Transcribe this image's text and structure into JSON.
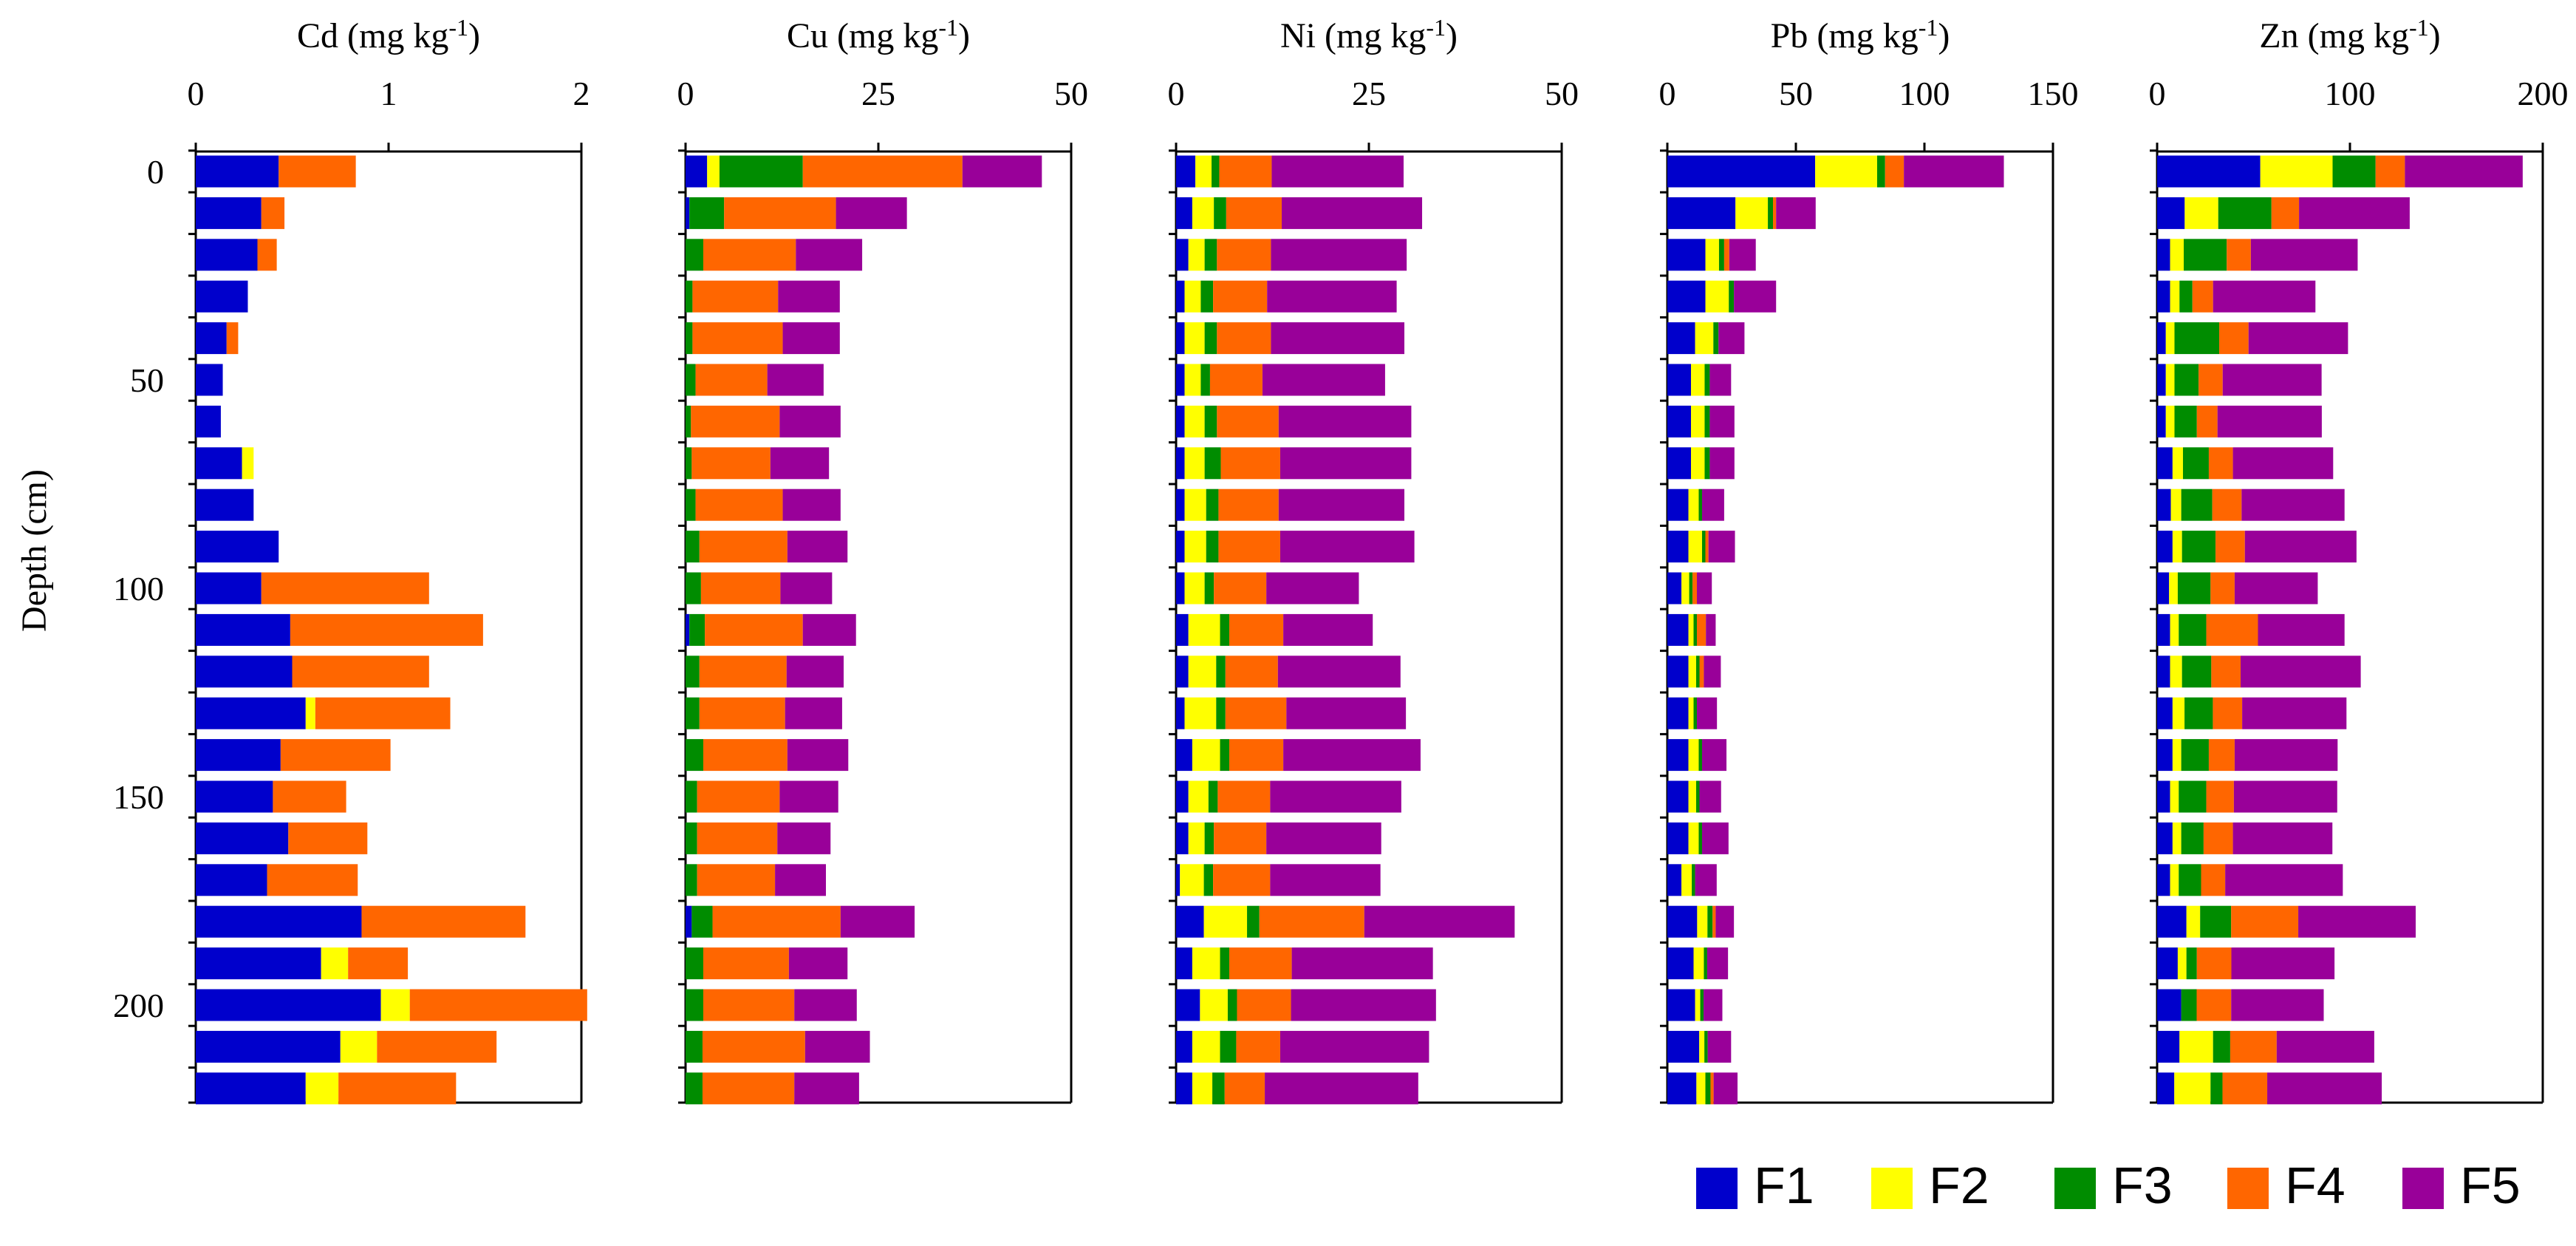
{
  "chart_data": {
    "type": "bar",
    "orientation": "horizontal",
    "stacked": true,
    "y_axis": {
      "label": "Depth (cm)",
      "tick_labels": [
        "0",
        "50",
        "100",
        "150",
        "200"
      ],
      "tick_values": [
        0,
        50,
        100,
        150,
        200
      ]
    },
    "depths": [
      0,
      10,
      20,
      30,
      40,
      50,
      60,
      70,
      80,
      90,
      100,
      110,
      120,
      130,
      140,
      150,
      160,
      170,
      180,
      190,
      200,
      210,
      220
    ],
    "legend": {
      "position": "bottom-right",
      "entries": [
        {
          "name": "F1",
          "color": "#0000CC"
        },
        {
          "name": "F2",
          "color": "#FFFF00"
        },
        {
          "name": "F3",
          "color": "#008C00"
        },
        {
          "name": "F4",
          "color": "#FF6600"
        },
        {
          "name": "F5",
          "color": "#990099"
        }
      ]
    },
    "panels": [
      {
        "title": "Cd (mg kg-1)",
        "title_main": "Cd (mg kg",
        "title_sup": "-1",
        "title_close": ")",
        "xlim": [
          0,
          2
        ],
        "x_ticks": [
          0,
          1,
          2
        ],
        "x_tick_labels": [
          "0",
          "1",
          "2"
        ],
        "values": [
          [
            0.43,
            0,
            0,
            0.4,
            0
          ],
          [
            0.34,
            0,
            0,
            0.12,
            0
          ],
          [
            0.32,
            0,
            0,
            0.1,
            0
          ],
          [
            0.27,
            0,
            0,
            0,
            0
          ],
          [
            0.16,
            0,
            0,
            0.06,
            0
          ],
          [
            0.14,
            0,
            0,
            0,
            0
          ],
          [
            0.13,
            0,
            0,
            0,
            0
          ],
          [
            0.24,
            0.06,
            0,
            0,
            0
          ],
          [
            0.3,
            0,
            0,
            0,
            0
          ],
          [
            0.43,
            0,
            0,
            0,
            0
          ],
          [
            0.34,
            0,
            0,
            0.87,
            0
          ],
          [
            0.49,
            0,
            0,
            1.0,
            0
          ],
          [
            0.5,
            0,
            0,
            0.71,
            0
          ],
          [
            0.57,
            0.05,
            0,
            0.7,
            0
          ],
          [
            0.44,
            0,
            0,
            0.57,
            0
          ],
          [
            0.4,
            0,
            0,
            0.38,
            0
          ],
          [
            0.48,
            0,
            0,
            0.41,
            0
          ],
          [
            0.37,
            0,
            0,
            0.47,
            0
          ],
          [
            0.86,
            0,
            0,
            0.85,
            0
          ],
          [
            0.65,
            0.14,
            0,
            0.31,
            0
          ],
          [
            0.96,
            0.15,
            0,
            0.92,
            0
          ],
          [
            0.75,
            0.19,
            0,
            0.62,
            0
          ],
          [
            0.57,
            0.17,
            0,
            0.61,
            0
          ]
        ]
      },
      {
        "title": "Cu (mg kg-1)",
        "title_main": "Cu (mg kg",
        "title_sup": "-1",
        "title_close": ")",
        "xlim": [
          0,
          50
        ],
        "x_ticks": [
          0,
          25,
          50
        ],
        "x_tick_labels": [
          "0",
          "25",
          "50"
        ],
        "values": [
          [
            2.8,
            1.6,
            10.8,
            20.7,
            10.3
          ],
          [
            0.5,
            0,
            4.5,
            14.5,
            9.2
          ],
          [
            0,
            0,
            2.3,
            12.0,
            8.6
          ],
          [
            0,
            0,
            0.9,
            11.1,
            8.0
          ],
          [
            0,
            0,
            0.9,
            11.7,
            7.4
          ],
          [
            0,
            0,
            1.3,
            9.3,
            7.3
          ],
          [
            0,
            0,
            0.7,
            11.5,
            7.9
          ],
          [
            0,
            0,
            0.8,
            10.2,
            7.6
          ],
          [
            0,
            0,
            1.3,
            11.3,
            7.5
          ],
          [
            0,
            0,
            1.8,
            11.4,
            7.8
          ],
          [
            0,
            0,
            2.0,
            10.3,
            6.7
          ],
          [
            0.5,
            0,
            2.0,
            12.7,
            6.9
          ],
          [
            0,
            0,
            1.8,
            11.3,
            7.4
          ],
          [
            0,
            0,
            1.8,
            11.1,
            7.4
          ],
          [
            0,
            0,
            2.3,
            10.9,
            7.9
          ],
          [
            0,
            0,
            1.5,
            10.7,
            7.6
          ],
          [
            0,
            0,
            1.5,
            10.4,
            6.9
          ],
          [
            0,
            0,
            1.5,
            10.1,
            6.6
          ],
          [
            0.8,
            0,
            2.7,
            16.6,
            9.6
          ],
          [
            0,
            0,
            2.3,
            11.1,
            7.6
          ],
          [
            0,
            0,
            2.3,
            11.8,
            8.1
          ],
          [
            0,
            0,
            2.2,
            13.3,
            8.4
          ],
          [
            0,
            0,
            2.2,
            11.9,
            8.4
          ]
        ]
      },
      {
        "title": "Ni (mg kg-1)",
        "title_main": "Ni (mg kg",
        "title_sup": "-1",
        "title_close": ")",
        "xlim": [
          0,
          50
        ],
        "x_ticks": [
          0,
          25,
          50
        ],
        "x_tick_labels": [
          "0",
          "25",
          "50"
        ],
        "values": [
          [
            2.5,
            2.1,
            1.0,
            6.8,
            17.1
          ],
          [
            2.1,
            2.8,
            1.6,
            7.2,
            18.2
          ],
          [
            1.6,
            2.1,
            1.6,
            7.0,
            17.6
          ],
          [
            1.1,
            2.1,
            1.6,
            7.0,
            16.8
          ],
          [
            1.1,
            2.6,
            1.6,
            7.0,
            17.3
          ],
          [
            1.1,
            2.1,
            1.2,
            6.8,
            15.9
          ],
          [
            1.1,
            2.6,
            1.6,
            8.0,
            17.2
          ],
          [
            1.1,
            2.6,
            2.1,
            7.7,
            17.0
          ],
          [
            1.1,
            2.8,
            1.6,
            7.8,
            16.3
          ],
          [
            1.1,
            2.8,
            1.6,
            8.0,
            17.4
          ],
          [
            1.1,
            2.6,
            1.2,
            6.8,
            12.0
          ],
          [
            1.6,
            4.1,
            1.2,
            7.0,
            11.6
          ],
          [
            1.6,
            3.6,
            1.2,
            6.8,
            15.9
          ],
          [
            1.1,
            4.1,
            1.2,
            7.9,
            15.5
          ],
          [
            2.1,
            3.6,
            1.2,
            7.0,
            17.8
          ],
          [
            1.6,
            2.6,
            1.2,
            6.8,
            17.0
          ],
          [
            1.6,
            2.1,
            1.2,
            6.8,
            14.9
          ],
          [
            0.5,
            3.1,
            1.2,
            7.4,
            14.3
          ],
          [
            3.6,
            5.6,
            1.6,
            13.6,
            19.5
          ],
          [
            2.1,
            3.6,
            1.2,
            8.1,
            18.3
          ],
          [
            3.1,
            3.6,
            1.2,
            7.0,
            18.8
          ],
          [
            2.1,
            3.6,
            2.1,
            5.7,
            19.3
          ],
          [
            2.1,
            2.6,
            1.6,
            5.2,
            19.9
          ]
        ]
      },
      {
        "title": "Pb (mg kg-1)",
        "title_main": "Pb (mg kg",
        "title_sup": "-1",
        "title_close": ")",
        "xlim": [
          0,
          150
        ],
        "x_ticks": [
          0,
          50,
          100,
          150
        ],
        "x_tick_labels": [
          "0",
          "50",
          "100",
          "150"
        ],
        "values": [
          [
            57.5,
            24.1,
            3.1,
            7.3,
            38.9
          ],
          [
            26.5,
            12.6,
            2.0,
            1.2,
            15.4
          ],
          [
            14.8,
            5.3,
            2.0,
            2.0,
            10.3
          ],
          [
            14.8,
            9.1,
            2.0,
            0,
            16.4
          ],
          [
            10.8,
            7.1,
            2.0,
            0,
            10.1
          ],
          [
            9.2,
            5.3,
            2.0,
            0,
            8.3
          ],
          [
            9.2,
            5.3,
            2.0,
            0,
            9.6
          ],
          [
            9.2,
            5.3,
            2.0,
            0,
            9.6
          ],
          [
            8.2,
            4.0,
            1.3,
            0,
            8.6
          ],
          [
            8.2,
            5.3,
            1.3,
            1.2,
            10.3
          ],
          [
            5.5,
            3.0,
            1.3,
            1.7,
            5.8
          ],
          [
            8.2,
            2.0,
            1.3,
            3.5,
            3.8
          ],
          [
            8.2,
            3.0,
            1.3,
            1.7,
            6.6
          ],
          [
            8.2,
            2.0,
            1.3,
            0,
            7.8
          ],
          [
            8.2,
            4.0,
            1.3,
            0,
            9.5
          ],
          [
            8.2,
            3.0,
            1.3,
            0,
            8.4
          ],
          [
            8.2,
            4.0,
            1.3,
            0,
            10.3
          ],
          [
            5.5,
            4.0,
            1.3,
            0,
            8.4
          ],
          [
            11.6,
            4.0,
            2.0,
            1.2,
            7.1
          ],
          [
            10.2,
            4.0,
            1.3,
            0,
            8.1
          ],
          [
            10.8,
            2.0,
            1.3,
            0,
            7.3
          ],
          [
            12.4,
            2.0,
            1.3,
            0,
            9.1
          ],
          [
            11.3,
            3.5,
            2.0,
            1.2,
            9.3
          ]
        ]
      },
      {
        "title": "Zn (mg kg-1)",
        "title_main": "Zn (mg kg",
        "title_sup": "-1",
        "title_close": ")",
        "xlim": [
          0,
          200
        ],
        "x_ticks": [
          0,
          100,
          200
        ],
        "x_tick_labels": [
          "0",
          "100",
          "200"
        ],
        "values": [
          [
            53.5,
            37.5,
            22.3,
            15.2,
            61.1
          ],
          [
            14.3,
            17.4,
            27.6,
            14.3,
            57.4
          ],
          [
            6.7,
            7.1,
            22.3,
            12.5,
            55.4
          ],
          [
            6.7,
            4.9,
            6.7,
            10.7,
            53.1
          ],
          [
            4.5,
            4.5,
            23.2,
            15.2,
            51.6
          ],
          [
            4.5,
            4.5,
            12.5,
            12.5,
            51.3
          ],
          [
            4.5,
            4.5,
            11.6,
            10.7,
            54.1
          ],
          [
            8.0,
            5.4,
            13.4,
            12.5,
            52.0
          ],
          [
            7.1,
            5.4,
            16.1,
            15.2,
            53.4
          ],
          [
            8.0,
            4.9,
            17.4,
            15.2,
            57.9
          ],
          [
            6.2,
            4.5,
            17.0,
            12.5,
            43.1
          ],
          [
            6.7,
            4.5,
            14.3,
            26.8,
            44.9
          ],
          [
            6.7,
            6.2,
            15.2,
            15.2,
            62.3
          ],
          [
            8.0,
            6.2,
            14.7,
            15.2,
            54.1
          ],
          [
            8.0,
            4.5,
            14.3,
            13.4,
            53.4
          ],
          [
            6.7,
            4.5,
            14.3,
            14.3,
            53.6
          ],
          [
            8.0,
            4.5,
            11.6,
            15.2,
            51.6
          ],
          [
            6.7,
            4.5,
            11.6,
            12.5,
            61.0
          ],
          [
            15.2,
            7.1,
            16.1,
            34.8,
            60.9
          ],
          [
            10.7,
            4.5,
            5.4,
            17.9,
            53.5
          ],
          [
            12.5,
            0,
            8.0,
            17.9,
            48.0
          ],
          [
            11.6,
            17.4,
            8.9,
            24.1,
            50.6
          ],
          [
            8.9,
            18.8,
            6.2,
            23.2,
            59.4
          ]
        ]
      }
    ]
  }
}
